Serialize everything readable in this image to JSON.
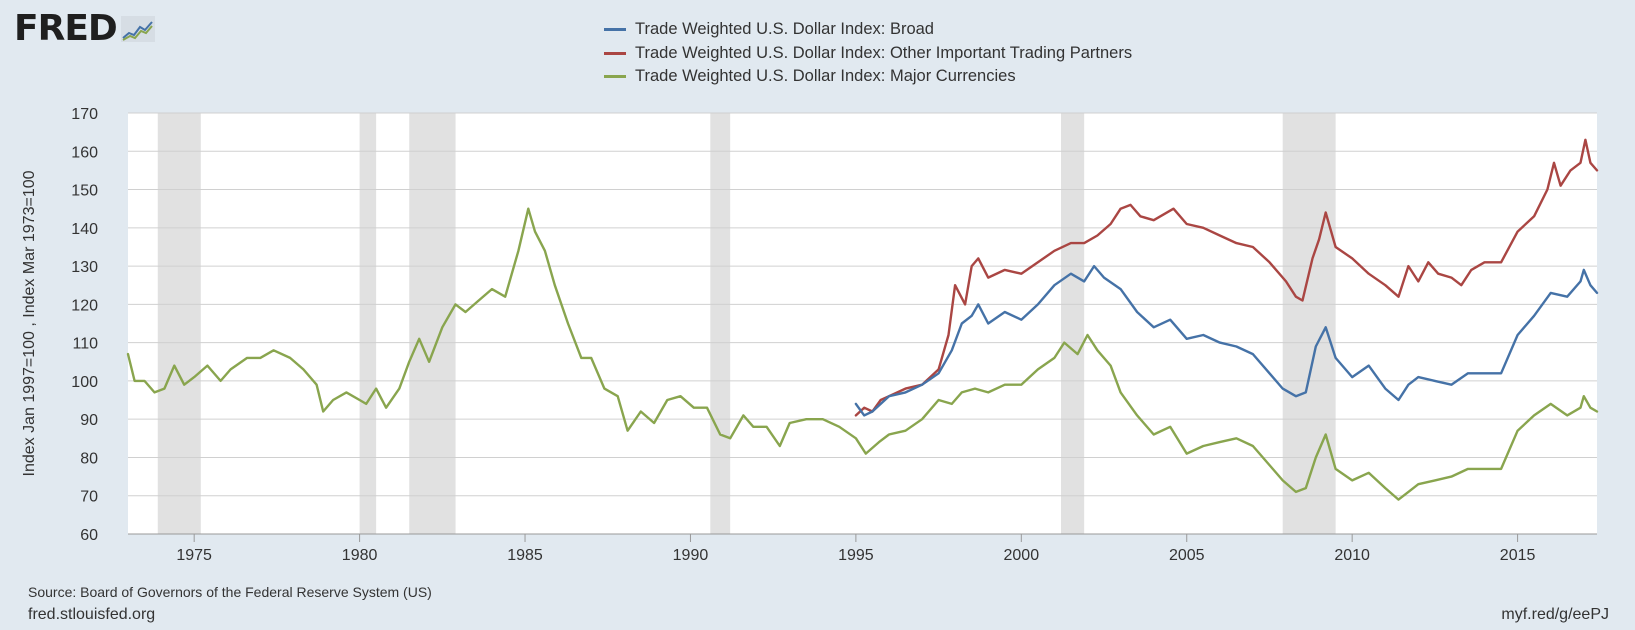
{
  "logo": {
    "text": "FRED",
    "registered": "®"
  },
  "colors": {
    "background": "#e1e9f0",
    "plot_background": "#ffffff",
    "recession": "#e1e1e1",
    "gridline": "#d0d0d0",
    "broad": "#4572a7",
    "other": "#aa4643",
    "major": "#89a54e"
  },
  "legend": {
    "items": [
      {
        "label": "Trade Weighted U.S. Dollar Index: Broad",
        "color": "#4572a7"
      },
      {
        "label": "Trade Weighted U.S. Dollar Index: Other Important Trading Partners",
        "color": "#aa4643"
      },
      {
        "label": "Trade Weighted U.S. Dollar Index: Major Currencies",
        "color": "#89a54e"
      }
    ]
  },
  "footer": {
    "source": "Source: Board of Governors of the Federal Reserve System (US)",
    "site": "fred.stlouisfed.org",
    "short_url": "myf.red/g/eePJ"
  },
  "chart_data": {
    "type": "line",
    "title": "",
    "xlabel": "",
    "ylabel": "Index Jan 1997=100 , Index Mar 1973=100",
    "xlim": [
      1973.0,
      2017.4
    ],
    "ylim": [
      60,
      170
    ],
    "yticks": [
      60,
      70,
      80,
      90,
      100,
      110,
      120,
      130,
      140,
      150,
      160,
      170
    ],
    "xticks": [
      1975,
      1980,
      1985,
      1990,
      1995,
      2000,
      2005,
      2010,
      2015
    ],
    "grid": "horizontal",
    "legend_placement": "top-center",
    "recessions": [
      [
        1973.9,
        1975.2
      ],
      [
        1980.0,
        1980.5
      ],
      [
        1981.5,
        1982.9
      ],
      [
        1990.6,
        1991.2
      ],
      [
        2001.2,
        2001.9
      ],
      [
        2007.9,
        2009.5
      ]
    ],
    "series": [
      {
        "name": "Trade Weighted U.S. Dollar Index: Broad",
        "color": "#4572a7",
        "points": [
          [
            1995.0,
            94
          ],
          [
            1995.25,
            91
          ],
          [
            1995.5,
            92
          ],
          [
            1995.75,
            94
          ],
          [
            1996.0,
            96
          ],
          [
            1996.5,
            97
          ],
          [
            1997.0,
            99
          ],
          [
            1997.5,
            102
          ],
          [
            1997.9,
            108
          ],
          [
            1998.2,
            115
          ],
          [
            1998.5,
            117
          ],
          [
            1998.7,
            120
          ],
          [
            1999.0,
            115
          ],
          [
            1999.5,
            118
          ],
          [
            2000.0,
            116
          ],
          [
            2000.5,
            120
          ],
          [
            2001.0,
            125
          ],
          [
            2001.5,
            128
          ],
          [
            2001.9,
            126
          ],
          [
            2002.2,
            130
          ],
          [
            2002.5,
            127
          ],
          [
            2003.0,
            124
          ],
          [
            2003.5,
            118
          ],
          [
            2004.0,
            114
          ],
          [
            2004.5,
            116
          ],
          [
            2005.0,
            111
          ],
          [
            2005.5,
            112
          ],
          [
            2006.0,
            110
          ],
          [
            2006.5,
            109
          ],
          [
            2007.0,
            107
          ],
          [
            2007.5,
            102
          ],
          [
            2007.9,
            98
          ],
          [
            2008.3,
            96
          ],
          [
            2008.6,
            97
          ],
          [
            2008.9,
            109
          ],
          [
            2009.2,
            114
          ],
          [
            2009.5,
            106
          ],
          [
            2010.0,
            101
          ],
          [
            2010.5,
            104
          ],
          [
            2011.0,
            98
          ],
          [
            2011.4,
            95
          ],
          [
            2011.7,
            99
          ],
          [
            2012.0,
            101
          ],
          [
            2012.5,
            100
          ],
          [
            2013.0,
            99
          ],
          [
            2013.5,
            102
          ],
          [
            2014.0,
            102
          ],
          [
            2014.5,
            102
          ],
          [
            2015.0,
            112
          ],
          [
            2015.5,
            117
          ],
          [
            2016.0,
            123
          ],
          [
            2016.5,
            122
          ],
          [
            2016.9,
            126
          ],
          [
            2017.0,
            129
          ],
          [
            2017.2,
            125
          ],
          [
            2017.4,
            123
          ]
        ]
      },
      {
        "name": "Trade Weighted U.S. Dollar Index: Other Important Trading Partners",
        "color": "#aa4643",
        "points": [
          [
            1995.0,
            91
          ],
          [
            1995.25,
            93
          ],
          [
            1995.5,
            92
          ],
          [
            1995.75,
            95
          ],
          [
            1996.0,
            96
          ],
          [
            1996.5,
            98
          ],
          [
            1997.0,
            99
          ],
          [
            1997.5,
            103
          ],
          [
            1997.8,
            112
          ],
          [
            1998.0,
            125
          ],
          [
            1998.3,
            120
          ],
          [
            1998.5,
            130
          ],
          [
            1998.7,
            132
          ],
          [
            1999.0,
            127
          ],
          [
            1999.5,
            129
          ],
          [
            2000.0,
            128
          ],
          [
            2000.5,
            131
          ],
          [
            2001.0,
            134
          ],
          [
            2001.5,
            136
          ],
          [
            2001.9,
            136
          ],
          [
            2002.3,
            138
          ],
          [
            2002.7,
            141
          ],
          [
            2003.0,
            145
          ],
          [
            2003.3,
            146
          ],
          [
            2003.6,
            143
          ],
          [
            2004.0,
            142
          ],
          [
            2004.6,
            145
          ],
          [
            2005.0,
            141
          ],
          [
            2005.5,
            140
          ],
          [
            2006.0,
            138
          ],
          [
            2006.5,
            136
          ],
          [
            2007.0,
            135
          ],
          [
            2007.5,
            131
          ],
          [
            2008.0,
            126
          ],
          [
            2008.3,
            122
          ],
          [
            2008.5,
            121
          ],
          [
            2008.8,
            132
          ],
          [
            2009.0,
            137
          ],
          [
            2009.2,
            144
          ],
          [
            2009.5,
            135
          ],
          [
            2010.0,
            132
          ],
          [
            2010.5,
            128
          ],
          [
            2011.0,
            125
          ],
          [
            2011.4,
            122
          ],
          [
            2011.7,
            130
          ],
          [
            2012.0,
            126
          ],
          [
            2012.3,
            131
          ],
          [
            2012.6,
            128
          ],
          [
            2013.0,
            127
          ],
          [
            2013.3,
            125
          ],
          [
            2013.6,
            129
          ],
          [
            2014.0,
            131
          ],
          [
            2014.5,
            131
          ],
          [
            2015.0,
            139
          ],
          [
            2015.5,
            143
          ],
          [
            2015.9,
            150
          ],
          [
            2016.1,
            157
          ],
          [
            2016.3,
            151
          ],
          [
            2016.6,
            155
          ],
          [
            2016.9,
            157
          ],
          [
            2017.05,
            163
          ],
          [
            2017.2,
            157
          ],
          [
            2017.4,
            155
          ]
        ]
      },
      {
        "name": "Trade Weighted U.S. Dollar Index: Major Currencies",
        "color": "#89a54e",
        "points": [
          [
            1973.0,
            107
          ],
          [
            1973.2,
            100
          ],
          [
            1973.5,
            100
          ],
          [
            1973.8,
            97
          ],
          [
            1974.1,
            98
          ],
          [
            1974.4,
            104
          ],
          [
            1974.7,
            99
          ],
          [
            1975.0,
            101
          ],
          [
            1975.4,
            104
          ],
          [
            1975.8,
            100
          ],
          [
            1976.1,
            103
          ],
          [
            1976.6,
            106
          ],
          [
            1977.0,
            106
          ],
          [
            1977.4,
            108
          ],
          [
            1977.9,
            106
          ],
          [
            1978.3,
            103
          ],
          [
            1978.7,
            99
          ],
          [
            1978.9,
            92
          ],
          [
            1979.2,
            95
          ],
          [
            1979.6,
            97
          ],
          [
            1980.0,
            95
          ],
          [
            1980.2,
            94
          ],
          [
            1980.5,
            98
          ],
          [
            1980.8,
            93
          ],
          [
            1981.2,
            98
          ],
          [
            1981.5,
            105
          ],
          [
            1981.8,
            111
          ],
          [
            1982.1,
            105
          ],
          [
            1982.5,
            114
          ],
          [
            1982.9,
            120
          ],
          [
            1983.2,
            118
          ],
          [
            1983.6,
            121
          ],
          [
            1984.0,
            124
          ],
          [
            1984.4,
            122
          ],
          [
            1984.8,
            134
          ],
          [
            1985.1,
            145
          ],
          [
            1985.3,
            139
          ],
          [
            1985.6,
            134
          ],
          [
            1985.9,
            125
          ],
          [
            1986.3,
            115
          ],
          [
            1986.7,
            106
          ],
          [
            1987.0,
            106
          ],
          [
            1987.4,
            98
          ],
          [
            1987.8,
            96
          ],
          [
            1988.1,
            87
          ],
          [
            1988.5,
            92
          ],
          [
            1988.9,
            89
          ],
          [
            1989.3,
            95
          ],
          [
            1989.7,
            96
          ],
          [
            1990.1,
            93
          ],
          [
            1990.5,
            93
          ],
          [
            1990.9,
            86
          ],
          [
            1991.2,
            85
          ],
          [
            1991.6,
            91
          ],
          [
            1991.9,
            88
          ],
          [
            1992.3,
            88
          ],
          [
            1992.7,
            83
          ],
          [
            1993.0,
            89
          ],
          [
            1993.5,
            90
          ],
          [
            1994.0,
            90
          ],
          [
            1994.5,
            88
          ],
          [
            1995.0,
            85
          ],
          [
            1995.3,
            81
          ],
          [
            1995.7,
            84
          ],
          [
            1996.0,
            86
          ],
          [
            1996.5,
            87
          ],
          [
            1997.0,
            90
          ],
          [
            1997.5,
            95
          ],
          [
            1997.9,
            94
          ],
          [
            1998.2,
            97
          ],
          [
            1998.6,
            98
          ],
          [
            1999.0,
            97
          ],
          [
            1999.5,
            99
          ],
          [
            2000.0,
            99
          ],
          [
            2000.5,
            103
          ],
          [
            2001.0,
            106
          ],
          [
            2001.3,
            110
          ],
          [
            2001.7,
            107
          ],
          [
            2002.0,
            112
          ],
          [
            2002.3,
            108
          ],
          [
            2002.7,
            104
          ],
          [
            2003.0,
            97
          ],
          [
            2003.5,
            91
          ],
          [
            2004.0,
            86
          ],
          [
            2004.5,
            88
          ],
          [
            2005.0,
            81
          ],
          [
            2005.5,
            83
          ],
          [
            2006.0,
            84
          ],
          [
            2006.5,
            85
          ],
          [
            2007.0,
            83
          ],
          [
            2007.5,
            78
          ],
          [
            2007.9,
            74
          ],
          [
            2008.3,
            71
          ],
          [
            2008.6,
            72
          ],
          [
            2008.9,
            80
          ],
          [
            2009.2,
            86
          ],
          [
            2009.5,
            77
          ],
          [
            2010.0,
            74
          ],
          [
            2010.5,
            76
          ],
          [
            2011.0,
            72
          ],
          [
            2011.4,
            69
          ],
          [
            2011.7,
            71
          ],
          [
            2012.0,
            73
          ],
          [
            2012.5,
            74
          ],
          [
            2013.0,
            75
          ],
          [
            2013.5,
            77
          ],
          [
            2014.0,
            77
          ],
          [
            2014.5,
            77
          ],
          [
            2015.0,
            87
          ],
          [
            2015.5,
            91
          ],
          [
            2016.0,
            94
          ],
          [
            2016.5,
            91
          ],
          [
            2016.9,
            93
          ],
          [
            2017.0,
            96
          ],
          [
            2017.2,
            93
          ],
          [
            2017.4,
            92
          ]
        ]
      }
    ]
  }
}
